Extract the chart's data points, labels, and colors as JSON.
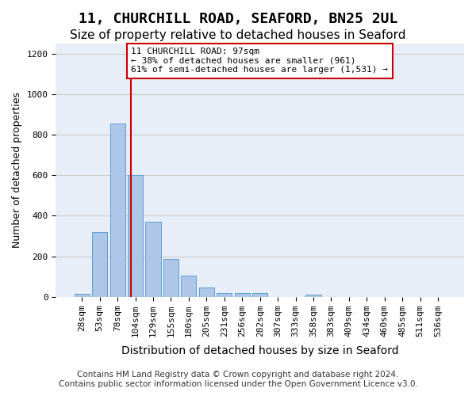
{
  "title": "11, CHURCHILL ROAD, SEAFORD, BN25 2UL",
  "subtitle": "Size of property relative to detached houses in Seaford",
  "xlabel": "Distribution of detached houses by size in Seaford",
  "ylabel": "Number of detached properties",
  "bin_labels": [
    "28sqm",
    "53sqm",
    "78sqm",
    "104sqm",
    "129sqm",
    "155sqm",
    "180sqm",
    "205sqm",
    "231sqm",
    "256sqm",
    "282sqm",
    "307sqm",
    "333sqm",
    "358sqm",
    "383sqm",
    "409sqm",
    "434sqm",
    "460sqm",
    "485sqm",
    "511sqm",
    "536sqm"
  ],
  "bar_heights": [
    15,
    320,
    855,
    600,
    370,
    185,
    105,
    45,
    20,
    18,
    18,
    0,
    0,
    12,
    0,
    0,
    0,
    0,
    0,
    0,
    0
  ],
  "bar_color": "#aec6e8",
  "bar_edge_color": "#5a9fd4",
  "property_sqm": 97,
  "property_bin_index": 2.76,
  "vline_color": "#cc0000",
  "annotation_text": "11 CHURCHILL ROAD: 97sqm\n← 38% of detached houses are smaller (961)\n61% of semi-detached houses are larger (1,531) →",
  "annotation_box_color": "#cc0000",
  "ylim": [
    0,
    1250
  ],
  "yticks": [
    0,
    200,
    400,
    600,
    800,
    1000,
    1200
  ],
  "grid_color": "#cccccc",
  "bg_color": "#e8eef8",
  "footer_line1": "Contains HM Land Registry data © Crown copyright and database right 2024.",
  "footer_line2": "Contains public sector information licensed under the Open Government Licence v3.0.",
  "title_fontsize": 13,
  "subtitle_fontsize": 11,
  "xlabel_fontsize": 10,
  "ylabel_fontsize": 9,
  "tick_fontsize": 8,
  "footer_fontsize": 7.5
}
